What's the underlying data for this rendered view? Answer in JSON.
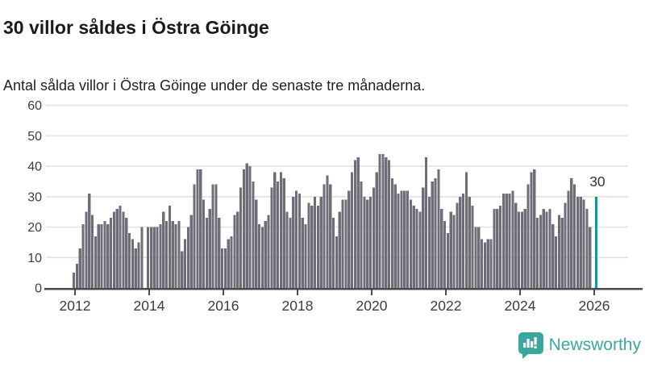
{
  "header": {
    "title": "30 villor såldes i Östra Göinge",
    "subtitle": "Antal sålda villor i Östra Göinge under de senaste tre månaderna."
  },
  "chart_data": {
    "type": "bar",
    "title": "30 villor såldes i Östra Göinge",
    "subtitle": "Antal sålda villor i Östra Göinge under de senaste tre månaderna.",
    "unit": "villor (rullande tremånaderssumma)",
    "x_start": "2012-01",
    "x_end": "2026-02",
    "x_tick_years": [
      2012,
      2014,
      2016,
      2018,
      2020,
      2022,
      2024,
      2026
    ],
    "y_ticks": [
      0,
      10,
      20,
      30,
      40,
      50,
      60
    ],
    "ylim": [
      0,
      60
    ],
    "grid": "horizontal",
    "legend": "none",
    "highlight_last": true,
    "highlight_value_label": "30",
    "values": [
      5,
      8,
      13,
      21,
      25,
      31,
      24,
      17,
      21,
      21,
      22,
      21,
      23,
      25,
      26,
      27,
      25,
      23,
      18,
      16,
      13,
      15,
      20,
      null,
      20,
      20,
      20,
      20,
      21,
      25,
      22,
      27,
      22,
      21,
      22,
      12,
      16,
      20,
      24,
      34,
      39,
      39,
      29,
      23,
      26,
      34,
      34,
      23,
      13,
      13,
      16,
      17,
      24,
      25,
      33,
      39,
      41,
      40,
      35,
      29,
      21,
      20,
      22,
      24,
      33,
      38,
      35,
      38,
      36,
      25,
      23,
      30,
      32,
      31,
      23,
      21,
      28,
      27,
      30,
      27,
      30,
      34,
      37,
      34,
      23,
      17,
      25,
      29,
      29,
      32,
      38,
      42,
      43,
      35,
      30,
      29,
      30,
      33,
      38,
      44,
      44,
      43,
      42,
      36,
      34,
      31,
      32,
      32,
      32,
      29,
      27,
      26,
      25,
      33,
      43,
      30,
      35,
      36,
      39,
      26,
      22,
      18,
      25,
      24,
      28,
      30,
      31,
      38,
      30,
      27,
      20,
      20,
      16,
      15,
      16,
      16,
      26,
      26,
      27,
      31,
      31,
      31,
      32,
      28,
      25,
      25,
      26,
      34,
      38,
      39,
      23,
      24,
      26,
      25,
      26,
      21,
      17,
      24,
      23,
      28,
      32,
      36,
      34,
      30,
      30,
      29,
      26,
      20,
      null,
      30
    ],
    "colors": {
      "bar": "#6e6e78",
      "highlight": "#00a39b",
      "grid": "#e4e4e4",
      "axis": "#4a4a4a",
      "tick_label": "#3d3d3d",
      "annotation": "#333333"
    }
  },
  "footer": {
    "logo_text": "Newsworthy",
    "logo_color": "#3aa79e"
  }
}
